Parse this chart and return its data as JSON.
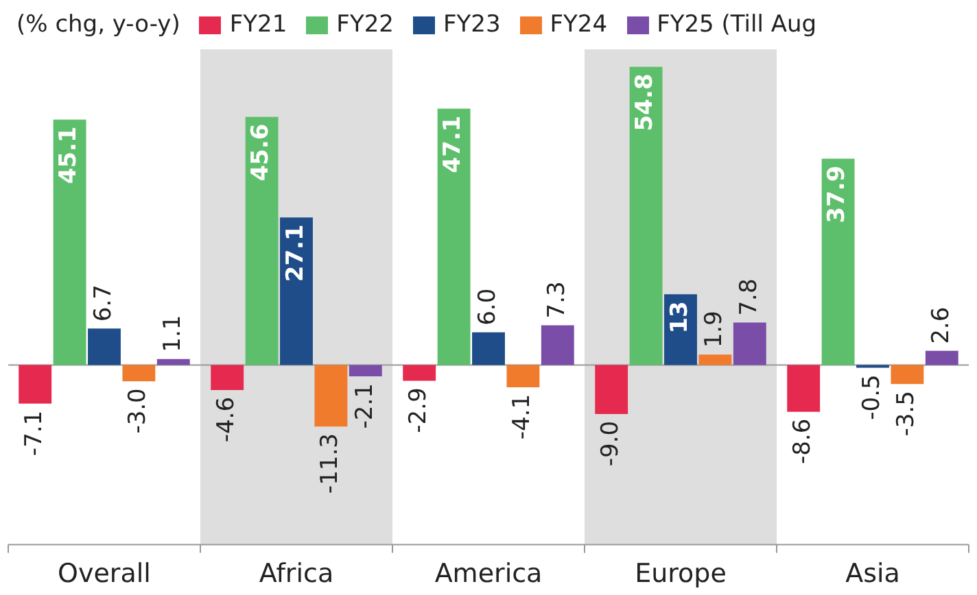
{
  "chart_data": {
    "type": "bar",
    "legend_title": "(% chg, y-o-y)",
    "legend": "top",
    "categories": [
      "Overall",
      "Africa",
      "America",
      "Europe",
      "Asia"
    ],
    "series": [
      {
        "name": "FY21",
        "color": "#e5294f",
        "values": [
          -7.1,
          -4.6,
          -2.9,
          -9.0,
          -8.6
        ],
        "value_labels": [
          "-7.1",
          "-4.6",
          "-2.9",
          "-9.0",
          "-8.6"
        ]
      },
      {
        "name": "FY22",
        "color": "#5dbf6b",
        "values": [
          45.1,
          45.6,
          47.1,
          54.8,
          37.9
        ],
        "value_labels": [
          "45.1",
          "45.6",
          "47.1",
          "54.8",
          "37.9"
        ]
      },
      {
        "name": "FY23",
        "color": "#1f4d8a",
        "values": [
          6.7,
          27.1,
          6.0,
          13,
          -0.5
        ],
        "value_labels": [
          "6.7",
          "27.1",
          "6.0",
          "13",
          "-0.5"
        ]
      },
      {
        "name": "FY24",
        "color": "#f07b2c",
        "values": [
          -3.0,
          -11.3,
          -4.1,
          1.9,
          -3.5
        ],
        "value_labels": [
          "-3.0",
          "-11.3",
          "-4.1",
          "1.9",
          "-3.5"
        ]
      },
      {
        "name": "FY25 (Till Aug",
        "color": "#7a4ea8",
        "values": [
          1.1,
          -2.1,
          7.3,
          7.8,
          2.6
        ],
        "value_labels": [
          "1.1",
          "-2.1",
          "7.3",
          "7.8",
          "2.6"
        ]
      }
    ],
    "ylim": [
      -33,
      58
    ],
    "bands": [
      {
        "axis": "x",
        "from": "Africa",
        "to": "Africa",
        "color": "#dedede"
      },
      {
        "axis": "x",
        "from": "Europe",
        "to": "Europe",
        "color": "#dedede"
      }
    ]
  }
}
